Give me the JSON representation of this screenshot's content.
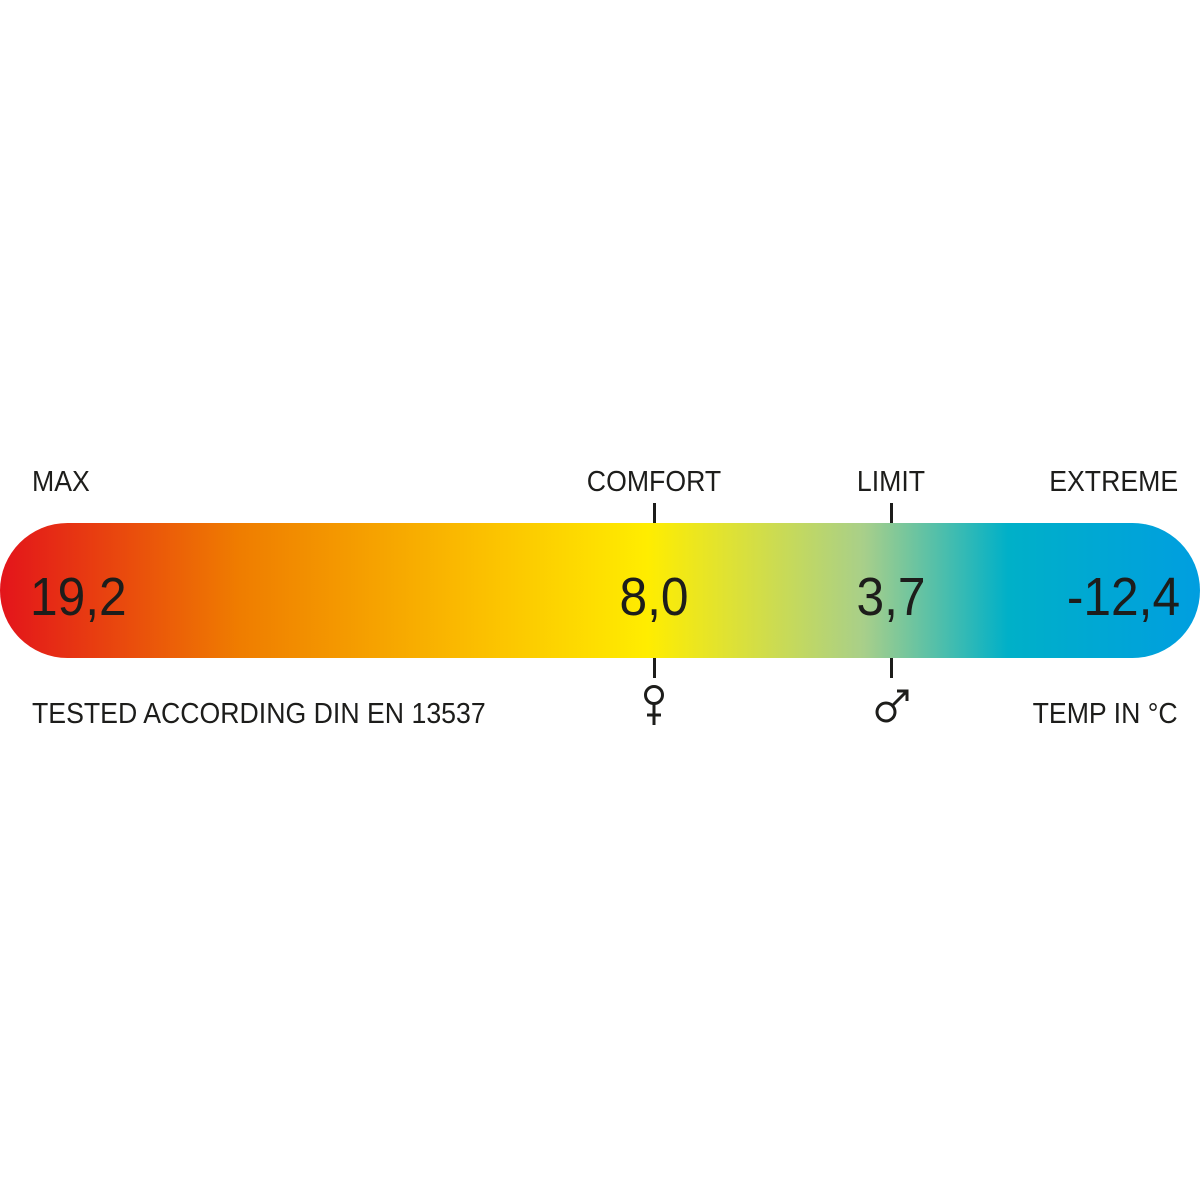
{
  "scale": {
    "labels": {
      "max": "MAX",
      "comfort": "COMFORT",
      "limit": "LIMIT",
      "extreme": "EXTREME"
    },
    "values": {
      "max": "19,2",
      "comfort": "8,0",
      "limit": "3,7",
      "extreme": "-12,4"
    },
    "footer_left": "TESTED ACCORDING DIN EN 13537",
    "footer_right": "TEMP IN °C",
    "comfort_symbol": "female-symbol-icon",
    "limit_symbol": "male-symbol-icon",
    "gradient_colors": [
      "#e3141b",
      "#ef7d00",
      "#fbbf00",
      "#ffed00",
      "#a8cf8a",
      "#00b0c8",
      "#009ee0"
    ]
  }
}
